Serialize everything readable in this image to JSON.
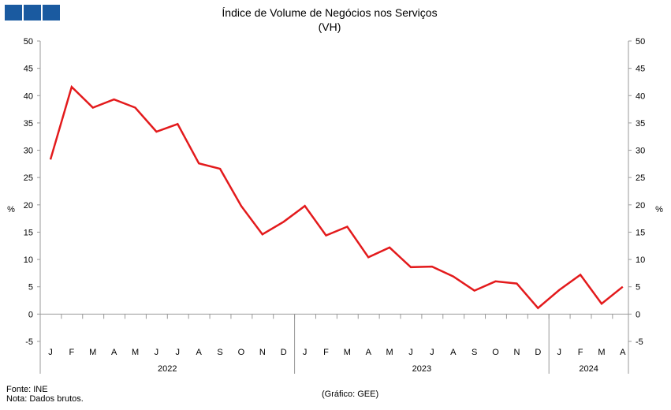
{
  "header": {
    "logo_icon": "ine-logo-blocks",
    "logo_color": "#1a5aa0"
  },
  "footer": {
    "source": "Fonte: INE",
    "note": "Nota: Dados brutos.",
    "credit": "(Gráfico: GEE)"
  },
  "chart_data": {
    "type": "line",
    "title": "Índice de Volume de Negócios nos Serviços",
    "subtitle": "(VH)",
    "ylabel_left": "%",
    "ylabel_right": "%",
    "ylim": [
      -5,
      50
    ],
    "yticks": [
      50,
      45,
      40,
      35,
      30,
      25,
      20,
      15,
      10,
      5,
      0,
      -5
    ],
    "grid": false,
    "categories": [
      "J",
      "F",
      "M",
      "A",
      "M",
      "J",
      "J",
      "A",
      "S",
      "O",
      "N",
      "D",
      "J",
      "F",
      "M",
      "A",
      "M",
      "J",
      "J",
      "A",
      "S",
      "O",
      "N",
      "D",
      "J",
      "F",
      "M",
      "A"
    ],
    "year_groups": [
      {
        "label": "2022",
        "start": 0,
        "end": 11
      },
      {
        "label": "2023",
        "start": 12,
        "end": 23
      },
      {
        "label": "2024",
        "start": 24,
        "end": 27
      }
    ],
    "series": [
      {
        "name": "VH",
        "color": "#e31a1c",
        "values": [
          28.3,
          41.6,
          37.8,
          39.3,
          37.8,
          33.4,
          34.8,
          27.6,
          26.6,
          19.8,
          14.6,
          16.9,
          19.8,
          14.4,
          16.0,
          10.4,
          12.2,
          8.6,
          8.7,
          6.9,
          4.3,
          6.0,
          5.6,
          1.1,
          4.4,
          7.2,
          1.9,
          5.0
        ]
      }
    ]
  }
}
